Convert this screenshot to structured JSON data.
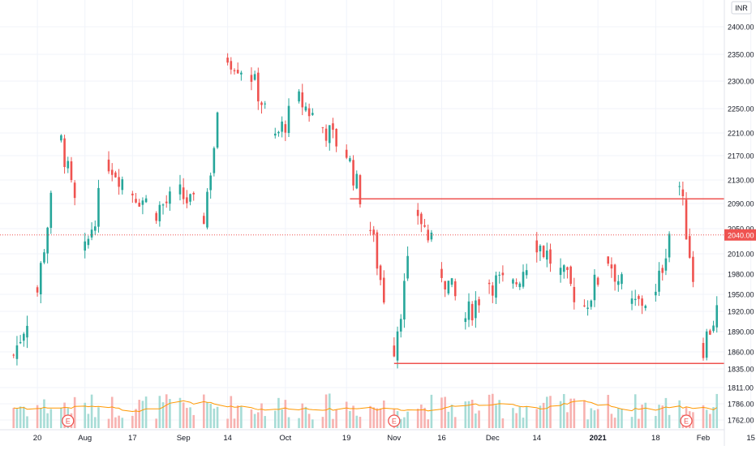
{
  "currency_badge": "INR",
  "chart_data": {
    "type": "candlestick",
    "title": "",
    "colors": {
      "up": "#26a69a",
      "down": "#ef5350",
      "level": "#ef5350",
      "ma": "#ff9800",
      "grid": "#f0f3fa",
      "axis_text": "#131722"
    },
    "y_axis": {
      "ticks": [
        2400,
        2350,
        2300,
        2250,
        2210,
        2170,
        2130,
        2090,
        2050,
        2010,
        1980,
        1950,
        1920,
        1890,
        1860,
        1835,
        1811,
        1786,
        1762
      ],
      "labels": [
        "2400.00",
        "2350.00",
        "2300.00",
        "2250.00",
        "2210.00",
        "2170.00",
        "2130.00",
        "2090.00",
        "2050.00",
        "2010.00",
        "1980.00",
        "1950.00",
        "1920.00",
        "1890.00",
        "1860.00",
        "1835.00",
        "1811.00",
        "1786.00",
        "1762.00"
      ]
    },
    "x_axis": {
      "labels": [
        "20",
        "Aug",
        "17",
        "Sep",
        "14",
        "Oct",
        "19",
        "Nov",
        "16",
        "Dec",
        "14",
        "2021",
        "18",
        "Feb",
        "15"
      ],
      "label_dates": [
        "2020-07-20",
        "2020-08-03",
        "2020-08-17",
        "2020-09-01",
        "2020-09-14",
        "2020-10-01",
        "2020-10-19",
        "2020-11-02",
        "2020-11-16",
        "2020-12-01",
        "2020-12-14",
        "2021-01-01",
        "2021-01-18",
        "2021-02-01",
        "2021-02-15"
      ]
    },
    "last_price": 2040.0,
    "last_price_label": "2040.00",
    "horizontal_levels": [
      {
        "name": "resistance",
        "value": 2098,
        "from": "2020-10-20",
        "to": "2021-02-16"
      },
      {
        "name": "support",
        "value": 1843,
        "from": "2020-11-02",
        "to": "2021-02-08"
      }
    ],
    "earnings_markers": [
      {
        "date": "2020-07-29",
        "label": "E"
      },
      {
        "date": "2020-11-02",
        "label": "E"
      },
      {
        "date": "2021-01-27",
        "label": "E"
      }
    ],
    "ohlc": [
      {
        "date": "2020-07-13",
        "close": 1855
      },
      {
        "date": "2020-07-20",
        "close": 1955
      },
      {
        "date": "2020-07-27",
        "close": 2195
      },
      {
        "date": "2020-08-03",
        "close": 2010
      },
      {
        "date": "2020-08-10",
        "close": 2160
      },
      {
        "date": "2020-08-17",
        "close": 2110
      },
      {
        "date": "2020-08-24",
        "close": 2080
      },
      {
        "date": "2020-08-31",
        "close": 2105
      },
      {
        "date": "2020-09-07",
        "close": 2070
      },
      {
        "date": "2020-09-14",
        "close": 2345
      },
      {
        "date": "2020-09-21",
        "close": 2310
      },
      {
        "date": "2020-09-28",
        "close": 2200
      },
      {
        "date": "2020-10-05",
        "close": 2265
      },
      {
        "date": "2020-10-12",
        "close": 2220
      },
      {
        "date": "2020-10-19",
        "close": 2175
      },
      {
        "date": "2020-10-26",
        "close": 2050
      },
      {
        "date": "2020-11-02",
        "close": 1870
      },
      {
        "date": "2020-11-09",
        "close": 2075
      },
      {
        "date": "2020-11-16",
        "close": 1985
      },
      {
        "date": "2020-11-23",
        "close": 1910
      },
      {
        "date": "2020-11-30",
        "close": 1970
      },
      {
        "date": "2020-12-07",
        "close": 1960
      },
      {
        "date": "2020-12-14",
        "close": 2030
      },
      {
        "date": "2020-12-21",
        "close": 1980
      },
      {
        "date": "2020-12-28",
        "close": 1930
      },
      {
        "date": "2021-01-04",
        "close": 2005
      },
      {
        "date": "2021-01-11",
        "close": 1930
      },
      {
        "date": "2021-01-18",
        "close": 1945
      },
      {
        "date": "2021-01-25",
        "close": 2120
      },
      {
        "date": "2021-02-01",
        "close": 1870
      },
      {
        "date": "2021-02-08",
        "close": 1960
      },
      {
        "date": "2021-02-15",
        "close": 2040
      }
    ],
    "volume_ma": "orange"
  }
}
